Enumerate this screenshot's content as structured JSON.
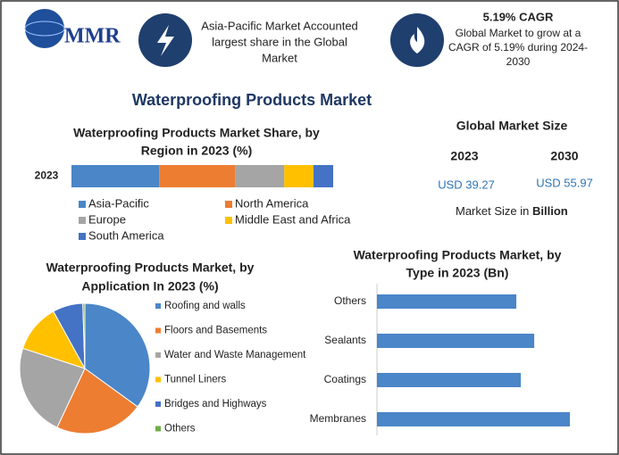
{
  "logo": "MMR",
  "header": {
    "highlight": [
      "Asia-Pacific Market Accounted",
      "largest share in the Global",
      "Market"
    ],
    "cagr_title": "5.19% CAGR",
    "cagr_text": [
      "Global Market to grow at a",
      "CAGR of 5.19% during 2024-",
      "2030"
    ]
  },
  "title": "Waterproofing Products Market",
  "market_size": {
    "title": "Global Market Size",
    "years": [
      "2023",
      "2030"
    ],
    "values": [
      "USD 39.27",
      "USD 55.97"
    ],
    "note": "Market Size in",
    "unit": "Billion"
  },
  "chart_data": [
    {
      "type": "stacked-bar",
      "title": [
        "Waterproofing Products Market Share, by",
        "Region in 2023 (%)"
      ],
      "categories": [
        "2023"
      ],
      "series": [
        {
          "name": "Asia-Pacific",
          "color": "#4a86c8",
          "values": [
            33.5
          ]
        },
        {
          "name": "North America",
          "color": "#ed7d31",
          "values": [
            29
          ]
        },
        {
          "name": "Europe",
          "color": "#a5a5a5",
          "values": [
            18.8
          ]
        },
        {
          "name": "Middle East and Africa",
          "color": "#ffc000",
          "values": [
            11.2
          ]
        },
        {
          "name": "South America",
          "color": "#4472c4",
          "values": [
            7.5
          ]
        }
      ]
    },
    {
      "type": "pie",
      "title": [
        "Waterproofing Products Market, by",
        "Application In 2023 (%)"
      ],
      "categories": [
        "Roofing and walls",
        "Floors and Basements",
        "Water and Waste Management",
        "Tunnel Liners",
        "Bridges and Highways",
        "Others"
      ],
      "values": [
        35,
        22,
        23,
        12,
        7.5,
        0.5
      ],
      "colors": [
        "#4a86c8",
        "#ed7d31",
        "#a5a5a5",
        "#ffc000",
        "#4472c4",
        "#70ad47"
      ]
    },
    {
      "type": "hbar",
      "title": [
        "Waterproofing Products Market, by",
        "Type in 2023 (Bn)"
      ],
      "categories": [
        "Others",
        "Sealants",
        "Coatings",
        "Membranes"
      ],
      "values": [
        8.64,
        9.75,
        8.92,
        11.96
      ],
      "color": "#4a86c8"
    }
  ]
}
